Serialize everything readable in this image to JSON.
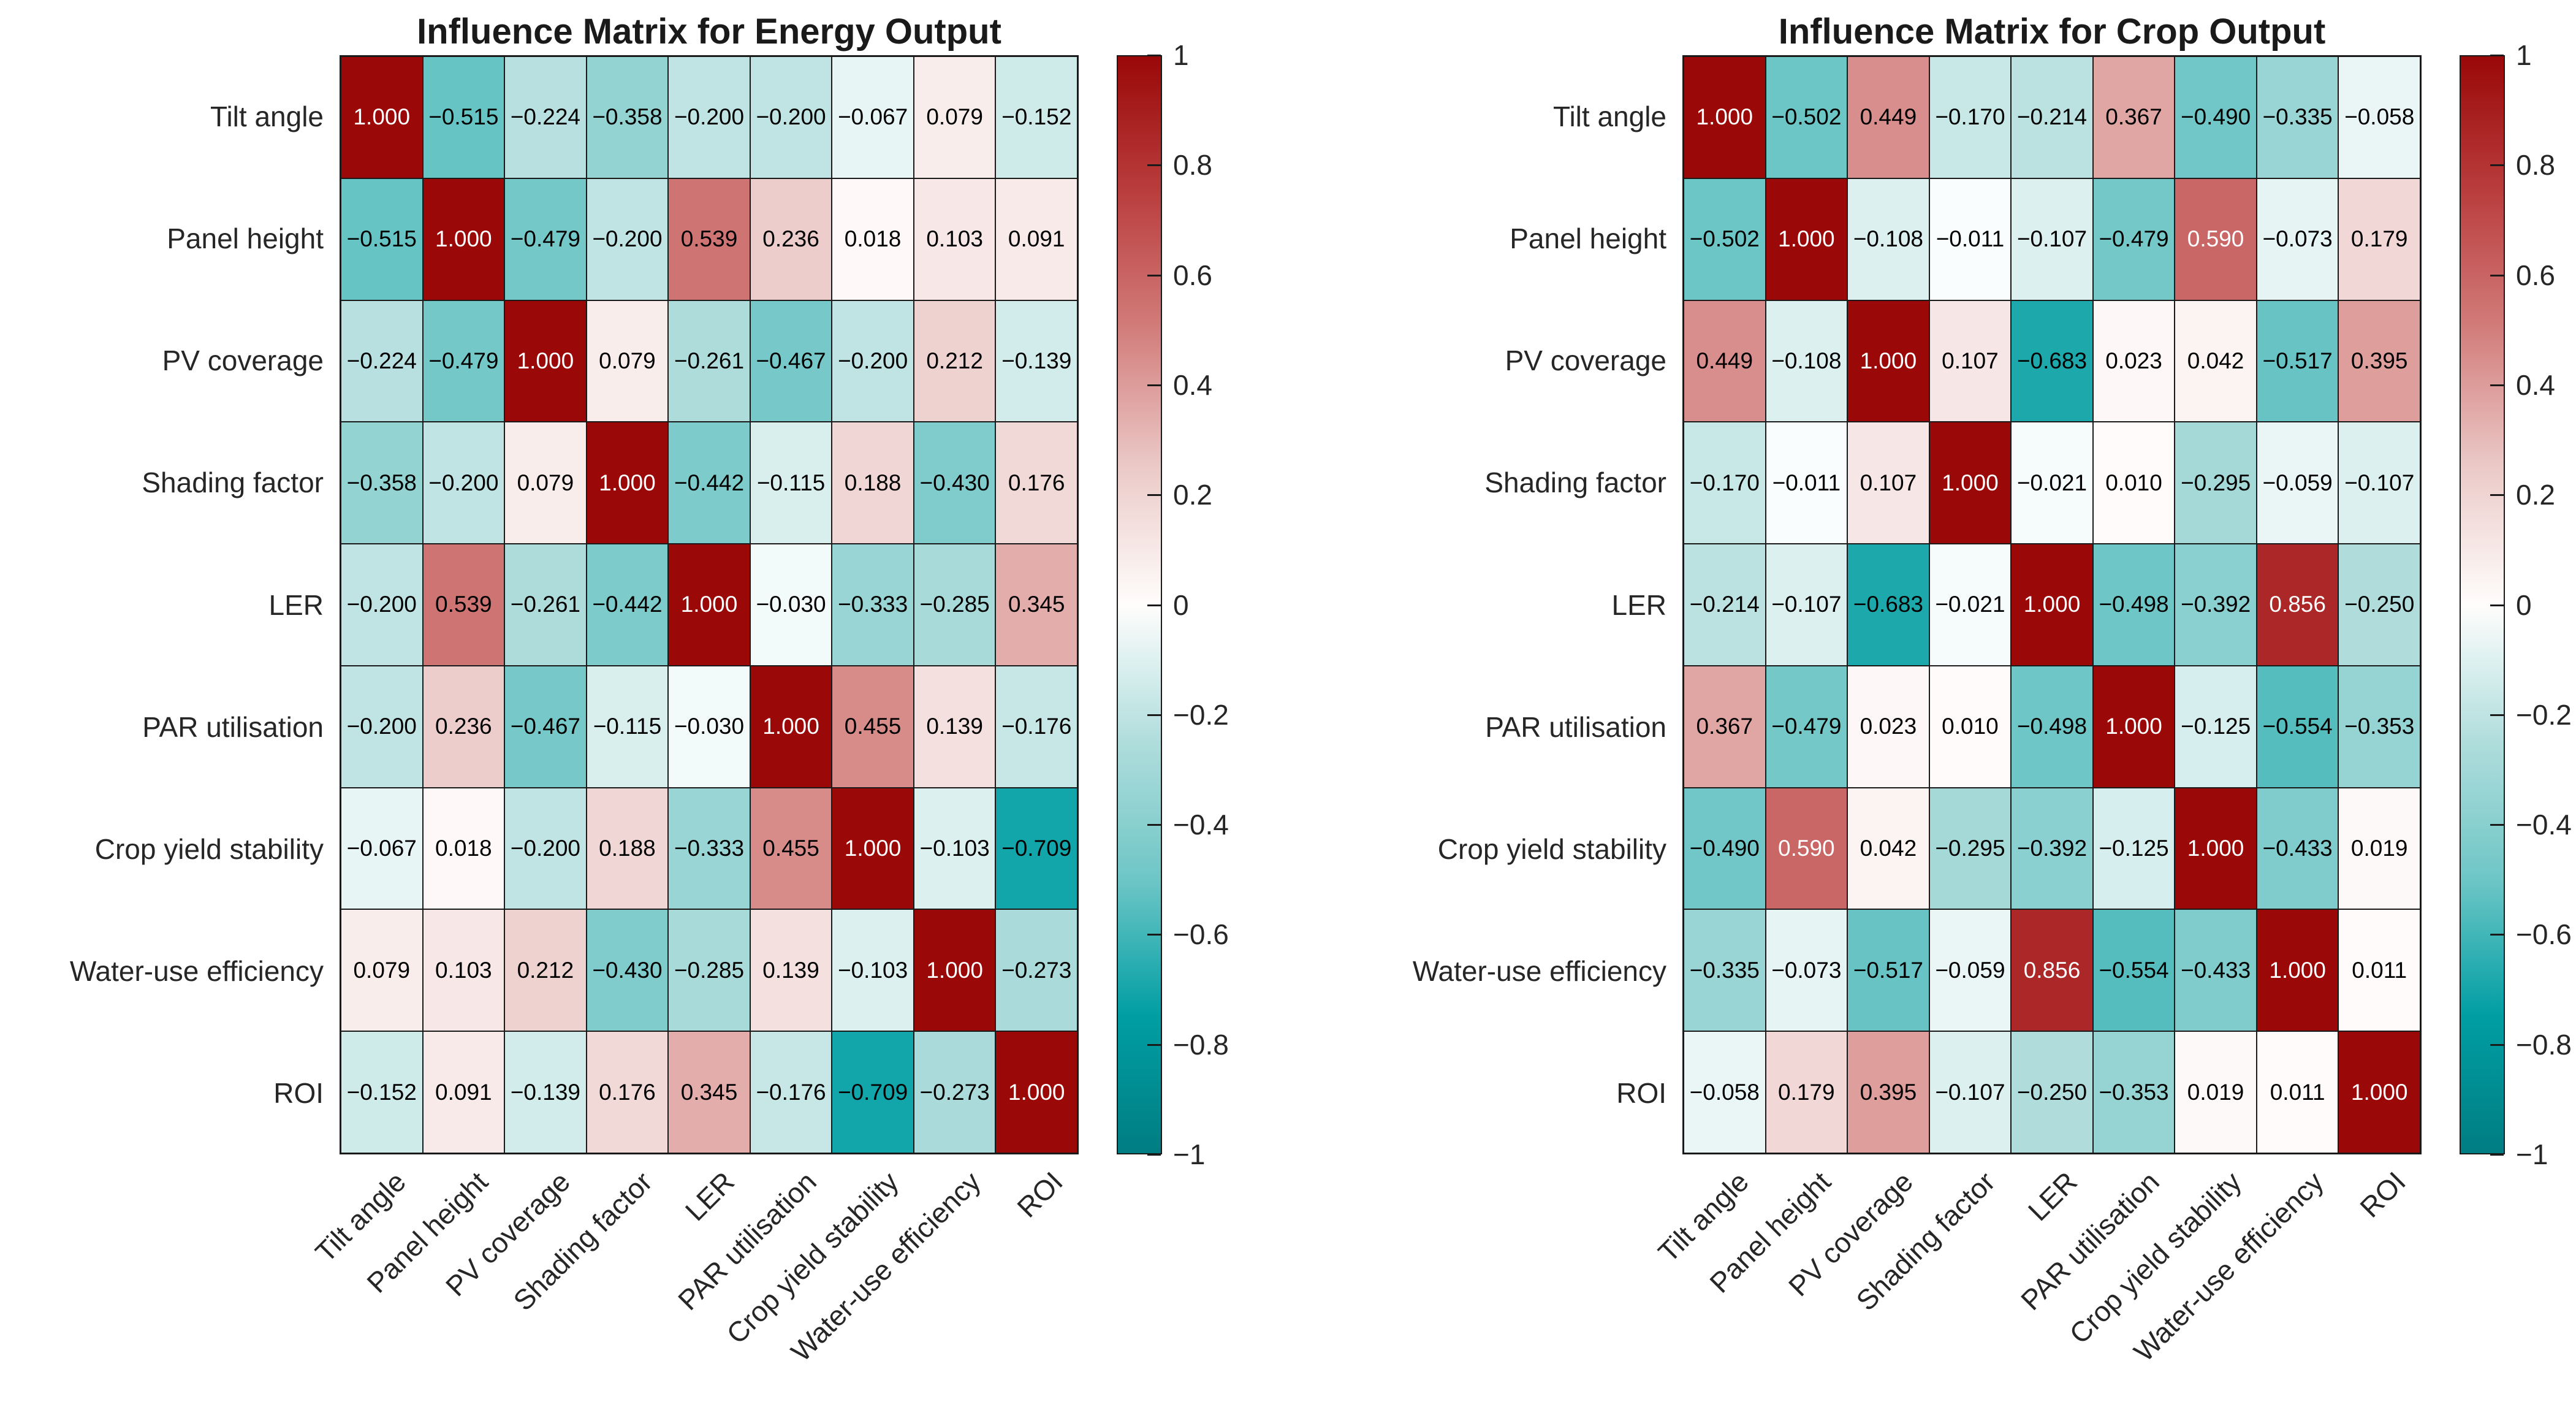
{
  "chart_data": [
    {
      "type": "heatmap",
      "title": "Influence Matrix for Energy Output",
      "x_labels": [
        "Tilt angle",
        "Panel height",
        "PV coverage",
        "Shading factor",
        "LER",
        "PAR utilisation",
        "Crop yield stability",
        "Water-use efficiency",
        "ROI"
      ],
      "y_labels": [
        "Tilt angle",
        "Panel height",
        "PV coverage",
        "Shading factor",
        "LER",
        "PAR utilisation",
        "Crop yield stability",
        "Water-use efficiency",
        "ROI"
      ],
      "values": [
        [
          1.0,
          -0.515,
          -0.224,
          -0.358,
          -0.2,
          -0.2,
          -0.067,
          0.079,
          -0.152
        ],
        [
          -0.515,
          1.0,
          -0.479,
          -0.2,
          0.539,
          0.236,
          0.018,
          0.103,
          0.091
        ],
        [
          -0.224,
          -0.479,
          1.0,
          0.079,
          -0.261,
          -0.467,
          -0.2,
          0.212,
          -0.139
        ],
        [
          -0.358,
          -0.2,
          0.079,
          1.0,
          -0.442,
          -0.115,
          0.188,
          -0.43,
          0.176
        ],
        [
          -0.2,
          0.539,
          -0.261,
          -0.442,
          1.0,
          -0.03,
          -0.333,
          -0.285,
          0.345
        ],
        [
          -0.2,
          0.236,
          -0.467,
          -0.115,
          -0.03,
          1.0,
          0.455,
          0.139,
          -0.176
        ],
        [
          -0.067,
          0.018,
          -0.2,
          0.188,
          -0.333,
          0.455,
          1.0,
          -0.103,
          -0.709
        ],
        [
          0.079,
          0.103,
          0.212,
          -0.43,
          -0.285,
          0.139,
          -0.103,
          1.0,
          -0.273
        ],
        [
          -0.152,
          0.091,
          -0.139,
          0.176,
          0.345,
          -0.176,
          -0.709,
          -0.273,
          1.0
        ]
      ],
      "colorbar": {
        "range": [
          -1,
          1
        ],
        "tick_values": [
          1,
          0.8,
          0.6,
          0.4,
          0.2,
          0,
          -0.2,
          -0.4,
          -0.6,
          -0.8,
          -1
        ],
        "tick_labels": [
          "1",
          "0.8",
          "0.6",
          "0.4",
          "0.2",
          "0",
          "−0.2",
          "−0.4",
          "−0.6",
          "−0.8",
          "−1"
        ]
      }
    },
    {
      "type": "heatmap",
      "title": "Influence Matrix for Crop Output",
      "x_labels": [
        "Tilt angle",
        "Panel height",
        "PV coverage",
        "Shading factor",
        "LER",
        "PAR utilisation",
        "Crop yield stability",
        "Water-use efficiency",
        "ROI"
      ],
      "y_labels": [
        "Tilt angle",
        "Panel height",
        "PV coverage",
        "Shading factor",
        "LER",
        "PAR utilisation",
        "Crop yield stability",
        "Water-use efficiency",
        "ROI"
      ],
      "values": [
        [
          1.0,
          -0.502,
          0.449,
          -0.17,
          -0.214,
          0.367,
          -0.49,
          -0.335,
          -0.058
        ],
        [
          -0.502,
          1.0,
          -0.108,
          -0.011,
          -0.107,
          -0.479,
          0.59,
          -0.073,
          0.179
        ],
        [
          0.449,
          -0.108,
          1.0,
          0.107,
          -0.683,
          0.023,
          0.042,
          -0.517,
          0.395
        ],
        [
          -0.17,
          -0.011,
          0.107,
          1.0,
          -0.021,
          0.01,
          -0.295,
          -0.059,
          -0.107
        ],
        [
          -0.214,
          -0.107,
          -0.683,
          -0.021,
          1.0,
          -0.498,
          -0.392,
          0.856,
          -0.25
        ],
        [
          0.367,
          -0.479,
          0.023,
          0.01,
          -0.498,
          1.0,
          -0.125,
          -0.554,
          -0.353
        ],
        [
          -0.49,
          0.59,
          0.042,
          -0.295,
          -0.392,
          -0.125,
          1.0,
          -0.433,
          0.019
        ],
        [
          -0.335,
          -0.073,
          -0.517,
          -0.059,
          0.856,
          -0.554,
          -0.433,
          1.0,
          0.011
        ],
        [
          -0.058,
          0.179,
          0.395,
          -0.107,
          -0.25,
          -0.353,
          0.019,
          0.011,
          1.0
        ]
      ],
      "colorbar": {
        "range": [
          -1,
          1
        ],
        "tick_values": [
          1,
          0.8,
          0.6,
          0.4,
          0.2,
          0,
          -0.2,
          -0.4,
          -0.6,
          -0.8,
          -1
        ],
        "tick_labels": [
          "1",
          "0.8",
          "0.6",
          "0.4",
          "0.2",
          "0",
          "−0.2",
          "−0.4",
          "−0.6",
          "−0.8",
          "−1"
        ]
      }
    }
  ],
  "style": {
    "background": "#ffffff",
    "grid_line_color": "#1a1a1a",
    "title_color": "#1a1a1a",
    "axis_label_color": "#262626",
    "cell_text_dark": "#000000",
    "cell_text_light": "#ffffff",
    "white_text_threshold": 0.58,
    "colormap": {
      "positive": [
        {
          "t": 0,
          "c": "#fffdfc"
        },
        {
          "t": 0.25,
          "c": "#ebcac8"
        },
        {
          "t": 0.5,
          "c": "#d27e7c"
        },
        {
          "t": 0.75,
          "c": "#ba3e3e"
        },
        {
          "t": 1,
          "c": "#9a0808"
        }
      ],
      "negative": [
        {
          "t": 0,
          "c": "#fcfefe"
        },
        {
          "t": 0.25,
          "c": "#b0dddc"
        },
        {
          "t": 0.5,
          "c": "#6ec6c6"
        },
        {
          "t": 0.75,
          "c": "#009ea3"
        },
        {
          "t": 1,
          "c": "#007d82"
        }
      ]
    }
  }
}
